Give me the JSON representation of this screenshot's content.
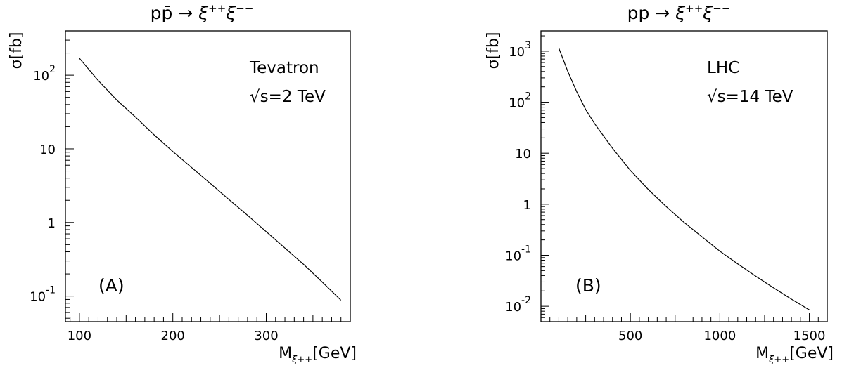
{
  "chart_data": [
    {
      "type": "line",
      "panel_label": "(A)",
      "title": "pp̄ → ξ⁺⁺ξ⁻⁻",
      "title_parts": {
        "proc": "pp̄",
        "arrow": "→",
        "xi1": "ξ",
        "sup1": "++",
        "xi2": "ξ",
        "sup2": "−−"
      },
      "annotation_lines": [
        "Tevatron",
        "√s=2 TeV"
      ],
      "ylabel": "σ[fb]",
      "xlabel": {
        "main": "M",
        "sub": "ξ++",
        "unit": "[GeV]"
      },
      "xlim": [
        85,
        390
      ],
      "ylim": [
        0.045,
        400
      ],
      "y_scale": "log",
      "x_ticks": [
        {
          "value": 100,
          "label": "100"
        },
        {
          "value": 200,
          "label": "200"
        },
        {
          "value": 300,
          "label": "300"
        }
      ],
      "y_ticks": [
        {
          "value": 0.1,
          "base": "10",
          "exp": "-1"
        },
        {
          "value": 1,
          "base": "1",
          "exp": ""
        },
        {
          "value": 10,
          "base": "10",
          "exp": ""
        },
        {
          "value": 100,
          "base": "10",
          "exp": "2"
        }
      ],
      "series": [
        {
          "x": [
            100,
            120,
            140,
            160,
            180,
            200,
            220,
            240,
            260,
            280,
            300,
            320,
            340,
            360,
            380
          ],
          "y": [
            170,
            85,
            46,
            27,
            15.5,
            9.2,
            5.6,
            3.4,
            2.05,
            1.25,
            0.75,
            0.45,
            0.27,
            0.155,
            0.088
          ]
        }
      ]
    },
    {
      "type": "line",
      "panel_label": "(B)",
      "title": "pp → ξ⁺⁺ξ⁻⁻",
      "title_parts": {
        "proc": "pp",
        "arrow": "→",
        "xi1": "ξ",
        "sup1": "++",
        "xi2": "ξ",
        "sup2": "−−"
      },
      "annotation_lines": [
        "LHC",
        "√s=14 TeV"
      ],
      "ylabel": "σ[fb]",
      "xlabel": {
        "main": "M",
        "sub": "ξ++",
        "unit": "[GeV]"
      },
      "xlim": [
        0,
        1600
      ],
      "ylim": [
        0.005,
        2500
      ],
      "y_scale": "log",
      "x_ticks": [
        {
          "value": 500,
          "label": "500"
        },
        {
          "value": 1000,
          "label": "1000"
        },
        {
          "value": 1500,
          "label": "1500"
        }
      ],
      "y_ticks": [
        {
          "value": 0.01,
          "base": "10",
          "exp": "-2"
        },
        {
          "value": 0.1,
          "base": "10",
          "exp": "-1"
        },
        {
          "value": 1,
          "base": "1",
          "exp": ""
        },
        {
          "value": 10,
          "base": "10",
          "exp": ""
        },
        {
          "value": 100,
          "base": "10",
          "exp": "2"
        },
        {
          "value": 1000,
          "base": "10",
          "exp": "3"
        }
      ],
      "series": [
        {
          "x": [
            100,
            150,
            200,
            250,
            300,
            400,
            500,
            600,
            700,
            800,
            900,
            1000,
            1100,
            1200,
            1300,
            1400,
            1500
          ],
          "y": [
            1150,
            400,
            160,
            72,
            38,
            12.5,
            4.6,
            1.95,
            0.9,
            0.44,
            0.23,
            0.12,
            0.068,
            0.039,
            0.023,
            0.0138,
            0.0085
          ]
        }
      ]
    }
  ]
}
